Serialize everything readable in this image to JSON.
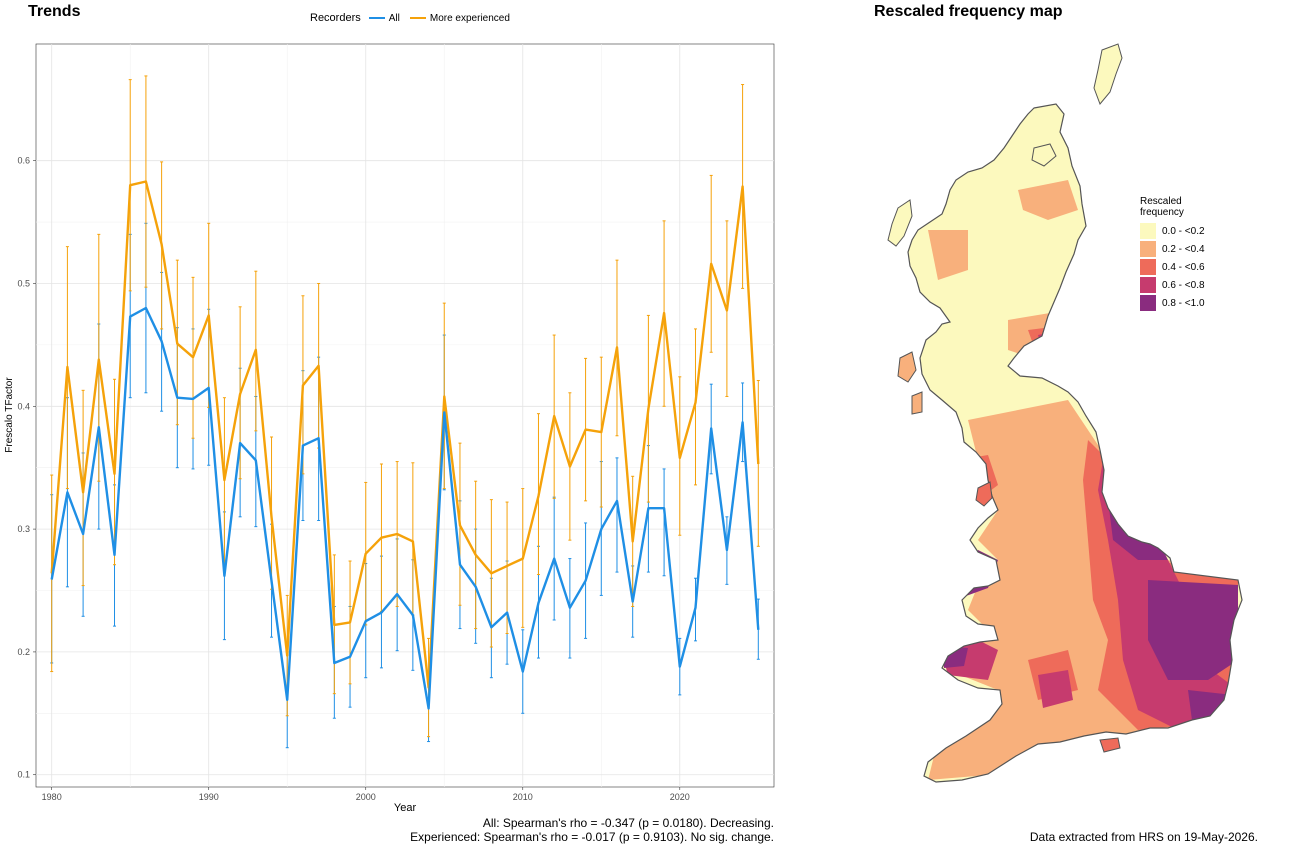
{
  "trends_title": "Trends",
  "map_title": "Rescaled frequency map",
  "legend": {
    "title": "Recorders",
    "items": [
      {
        "label": "All",
        "color": "#1f8fe5"
      },
      {
        "label": "More experienced",
        "color": "#f5a20a"
      }
    ]
  },
  "chart_data": {
    "type": "line",
    "xlabel": "Year",
    "ylabel": "Frescalo TFactor",
    "xlim": [
      1979,
      2026
    ],
    "ylim": [
      0.09,
      0.695
    ],
    "xticks": [
      1980,
      1990,
      2000,
      2010,
      2020
    ],
    "yticks": [
      0.1,
      0.2,
      0.3,
      0.4,
      0.5,
      0.6
    ],
    "grid": true,
    "legend_position": "top",
    "x": [
      1980,
      1981,
      1982,
      1983,
      1984,
      1985,
      1986,
      1987,
      1988,
      1989,
      1990,
      1991,
      1992,
      1993,
      1994,
      1995,
      1996,
      1997,
      1998,
      1999,
      2000,
      2001,
      2002,
      2003,
      2004,
      2005,
      2006,
      2007,
      2008,
      2009,
      2010,
      2011,
      2012,
      2013,
      2014,
      2015,
      2016,
      2017,
      2018,
      2019,
      2020,
      2021,
      2022,
      2023,
      2024,
      2025
    ],
    "series": [
      {
        "name": "All",
        "color": "#1f8fe5",
        "values": [
          0.259,
          0.33,
          0.296,
          0.383,
          0.279,
          0.473,
          0.48,
          0.453,
          0.407,
          0.406,
          0.415,
          0.262,
          0.37,
          0.356,
          0.258,
          0.161,
          0.368,
          0.374,
          0.191,
          0.196,
          0.225,
          0.232,
          0.247,
          0.23,
          0.154,
          0.395,
          0.271,
          0.253,
          0.22,
          0.232,
          0.184,
          0.24,
          0.276,
          0.236,
          0.258,
          0.3,
          0.323,
          0.241,
          0.317,
          0.317,
          0.188,
          0.236,
          0.382,
          0.283,
          0.387,
          0.218
        ],
        "lower": [
          0.191,
          0.253,
          0.229,
          0.3,
          0.221,
          0.407,
          0.411,
          0.396,
          0.35,
          0.349,
          0.352,
          0.21,
          0.31,
          0.302,
          0.212,
          0.122,
          0.307,
          0.307,
          0.146,
          0.155,
          0.179,
          0.187,
          0.201,
          0.185,
          0.127,
          0.332,
          0.219,
          0.207,
          0.179,
          0.19,
          0.15,
          0.195,
          0.226,
          0.195,
          0.211,
          0.246,
          0.265,
          0.212,
          0.265,
          0.262,
          0.165,
          0.209,
          0.345,
          0.255,
          0.355,
          0.194
        ],
        "upper": [
          0.328,
          0.407,
          0.362,
          0.467,
          0.336,
          0.54,
          0.549,
          0.509,
          0.464,
          0.463,
          0.479,
          0.314,
          0.431,
          0.408,
          0.304,
          0.2,
          0.429,
          0.44,
          0.237,
          0.237,
          0.272,
          0.278,
          0.292,
          0.275,
          0.18,
          0.458,
          0.323,
          0.3,
          0.26,
          0.274,
          0.218,
          0.286,
          0.326,
          0.276,
          0.305,
          0.355,
          0.358,
          0.27,
          0.368,
          0.349,
          0.211,
          0.26,
          0.418,
          0.31,
          0.419,
          0.243
        ]
      },
      {
        "name": "More experienced",
        "color": "#f5a20a",
        "values": [
          0.264,
          0.432,
          0.33,
          0.438,
          0.345,
          0.58,
          0.583,
          0.532,
          0.451,
          0.44,
          0.474,
          0.34,
          0.41,
          0.446,
          0.31,
          0.197,
          0.417,
          0.433,
          0.222,
          0.224,
          0.28,
          0.293,
          0.296,
          0.29,
          0.171,
          0.408,
          0.303,
          0.279,
          0.264,
          0.27,
          0.276,
          0.327,
          0.392,
          0.351,
          0.381,
          0.379,
          0.448,
          0.29,
          0.398,
          0.476,
          0.358,
          0.403,
          0.516,
          0.478,
          0.579,
          0.353
        ],
        "lower": [
          0.184,
          0.333,
          0.254,
          0.339,
          0.271,
          0.494,
          0.497,
          0.463,
          0.385,
          0.374,
          0.399,
          0.272,
          0.341,
          0.38,
          0.251,
          0.148,
          0.345,
          0.366,
          0.166,
          0.174,
          0.222,
          0.233,
          0.237,
          0.23,
          0.131,
          0.333,
          0.238,
          0.219,
          0.204,
          0.215,
          0.22,
          0.263,
          0.325,
          0.291,
          0.323,
          0.318,
          0.376,
          0.237,
          0.322,
          0.4,
          0.295,
          0.336,
          0.444,
          0.408,
          0.496,
          0.286
        ],
        "upper": [
          0.344,
          0.53,
          0.413,
          0.54,
          0.422,
          0.666,
          0.669,
          0.599,
          0.519,
          0.505,
          0.549,
          0.407,
          0.481,
          0.51,
          0.375,
          0.246,
          0.49,
          0.5,
          0.279,
          0.274,
          0.338,
          0.353,
          0.355,
          0.354,
          0.211,
          0.484,
          0.37,
          0.339,
          0.324,
          0.322,
          0.333,
          0.394,
          0.458,
          0.411,
          0.439,
          0.44,
          0.519,
          0.343,
          0.474,
          0.551,
          0.424,
          0.463,
          0.588,
          0.551,
          0.662,
          0.421
        ]
      }
    ]
  },
  "footer": {
    "stat_all": "All: Spearman's rho = -0.347 (p = 0.0180). Decreasing.",
    "stat_experienced": "Experienced: Spearman's rho = -0.017 (p = 0.9103). No sig. change.",
    "data_note": "Data extracted from HRS on 19-May-2026."
  },
  "map_legend": {
    "title_line1": "Rescaled",
    "title_line2": "frequency",
    "items": [
      {
        "label": "0.0 - <0.2",
        "color": "#fcf9be"
      },
      {
        "label": "0.2 - <0.4",
        "color": "#f8b07c"
      },
      {
        "label": "0.4 - <0.6",
        "color": "#ee6b5a"
      },
      {
        "label": "0.6 - <0.8",
        "color": "#c63b6e"
      },
      {
        "label": "0.8 - <1.0",
        "color": "#8a2c7f"
      }
    ]
  }
}
